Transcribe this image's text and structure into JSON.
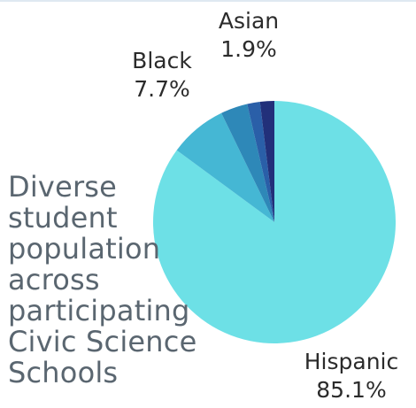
{
  "chart_data": {
    "type": "pie",
    "title": "Diverse student population across participating Civic Science Schools",
    "start": "top",
    "direction": "clockwise",
    "slices": [
      {
        "key": "hispanic",
        "label": "Hispanic",
        "value": 85.1,
        "value_label": "85.1%",
        "color": "#6de0e6"
      },
      {
        "key": "black",
        "label": "Black",
        "value": 7.7,
        "value_label": "7.7%",
        "color": "#45b7d4"
      },
      {
        "key": "other",
        "label": "",
        "value": 3.6,
        "value_label": "",
        "color": "#2e88b8"
      },
      {
        "key": "mixed",
        "label": "",
        "value": 1.7,
        "value_label": "",
        "color": "#2a5fa8"
      },
      {
        "key": "asian",
        "label": "Asian",
        "value": 1.9,
        "value_label": "1.9%",
        "color": "#22307a"
      }
    ]
  }
}
